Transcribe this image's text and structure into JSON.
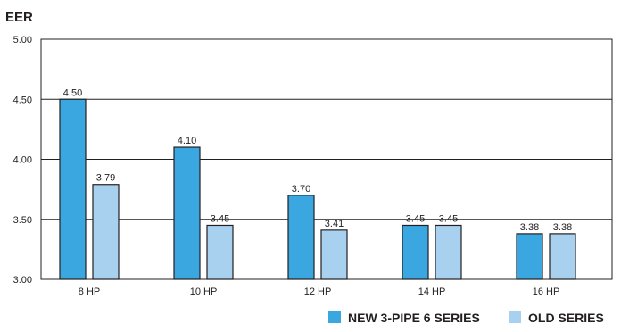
{
  "chart_data": {
    "type": "bar",
    "ylabel": "EER",
    "xlabel": "",
    "ylim": [
      3.0,
      5.0
    ],
    "yticks": [
      "3.00",
      "3.50",
      "4.00",
      "4.50",
      "5.00"
    ],
    "categories": [
      "8 HP",
      "10 HP",
      "12 HP",
      "14 HP",
      "16 HP"
    ],
    "series": [
      {
        "name": "NEW 3-PIPE 6 SERIES",
        "values": [
          4.5,
          4.1,
          3.7,
          3.45,
          3.38
        ],
        "labels": [
          "4.50",
          "4.10",
          "3.70",
          "3.45",
          "3.38"
        ]
      },
      {
        "name": "OLD SERIES",
        "values": [
          3.79,
          3.45,
          3.41,
          3.45,
          3.38
        ],
        "labels": [
          "3.79",
          "3.45",
          "3.41",
          "3.45",
          "3.38"
        ]
      }
    ],
    "grid": true,
    "legend_position": "bottom-right",
    "colors": {
      "new": "#3aa7e0",
      "old": "#a8d0ef",
      "stroke": "#231f20"
    }
  }
}
